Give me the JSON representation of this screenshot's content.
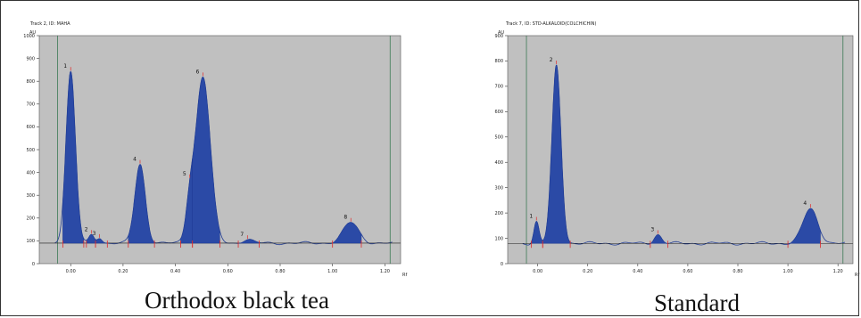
{
  "captions": [
    "Orthodox black tea",
    "Standard"
  ],
  "colors": {
    "plot_bg": "#c0c0c0",
    "fill": "#2b4aa6",
    "line": "#1f3b94",
    "marker": "#e02a2a",
    "edge": "#3c7a55"
  },
  "chart_data": [
    {
      "type": "area",
      "title": "Track 2, ID: MAHA",
      "ylabel": "AU",
      "xlabel": "Rf",
      "xlim": [
        -0.12,
        1.26
      ],
      "ylim": [
        0,
        1000
      ],
      "yticks": [
        0,
        100,
        200,
        300,
        400,
        500,
        600,
        700,
        800,
        900,
        1000
      ],
      "xticks": [
        0.0,
        0.2,
        0.4,
        0.6,
        0.8,
        1.0,
        1.2
      ],
      "tick_labels_x": [
        "0.00",
        "0.20",
        "0.40",
        "0.60",
        "0.80",
        "1.00",
        "1.20"
      ],
      "tick_labels_y": [
        "0",
        "100",
        "200",
        "300",
        "400",
        "500",
        "600",
        "700",
        "800",
        "900",
        "1000"
      ],
      "baseline": 90,
      "edges": [
        -0.05,
        1.22
      ],
      "peaks": [
        {
          "label": "1",
          "rf": 0.0,
          "height": 840,
          "width": 0.018,
          "start": -0.03,
          "end": 0.05
        },
        {
          "label": "2",
          "rf": 0.08,
          "height": 125,
          "width": 0.01,
          "start": 0.06,
          "end": 0.095
        },
        {
          "label": "3",
          "rf": 0.11,
          "height": 115,
          "width": 0.01,
          "start": 0.095,
          "end": 0.14
        },
        {
          "label": "4",
          "rf": 0.265,
          "height": 435,
          "width": 0.02,
          "start": 0.22,
          "end": 0.32
        },
        {
          "label": "5",
          "rf": 0.455,
          "height": 230,
          "width": 0.015,
          "start": 0.42,
          "end": 0.465
        },
        {
          "label": "6",
          "rf": 0.505,
          "height": 820,
          "width": 0.028,
          "start": 0.465,
          "end": 0.57
        },
        {
          "label": "7",
          "rf": 0.675,
          "height": 105,
          "width": 0.02,
          "start": 0.64,
          "end": 0.72
        },
        {
          "label": "8",
          "rf": 1.07,
          "height": 180,
          "width": 0.03,
          "start": 1.0,
          "end": 1.11
        }
      ]
    },
    {
      "type": "area",
      "title": "Track 7, ID: STD-ALKALOID(COLCHICHIN)",
      "ylabel": "AU",
      "xlabel": "Rf",
      "xlim": [
        -0.12,
        1.26
      ],
      "ylim": [
        0,
        900
      ],
      "yticks": [
        0,
        100,
        200,
        300,
        400,
        500,
        600,
        700,
        800,
        900
      ],
      "xticks": [
        0.0,
        0.2,
        0.4,
        0.6,
        0.8,
        1.0,
        1.2
      ],
      "tick_labels_x": [
        "0.00",
        "0.20",
        "0.40",
        "0.60",
        "0.80",
        "1.00",
        "1.20"
      ],
      "tick_labels_y": [
        "0",
        "100",
        "200",
        "300",
        "400",
        "500",
        "600",
        "700",
        "800",
        "900"
      ],
      "baseline": 80,
      "edges": [
        -0.045,
        1.22
      ],
      "peaks": [
        {
          "label": "1",
          "rf": -0.005,
          "height": 165,
          "width": 0.01,
          "start": -0.025,
          "end": 0.02
        },
        {
          "label": "2",
          "rf": 0.075,
          "height": 780,
          "width": 0.018,
          "start": 0.02,
          "end": 0.13
        },
        {
          "label": "3",
          "rf": 0.48,
          "height": 115,
          "width": 0.015,
          "start": 0.45,
          "end": 0.52
        },
        {
          "label": "4",
          "rf": 1.09,
          "height": 215,
          "width": 0.03,
          "start": 1.0,
          "end": 1.13
        }
      ]
    }
  ]
}
